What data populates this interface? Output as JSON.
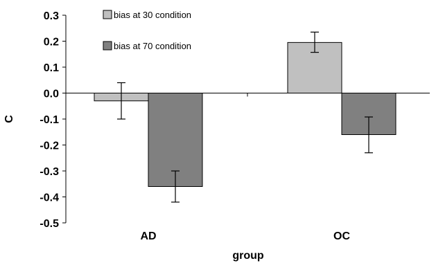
{
  "chart_data": {
    "type": "bar",
    "categories": [
      "AD",
      "OC"
    ],
    "series": [
      {
        "name": "bias at 30 condition",
        "color": "#c0c0c0",
        "values": [
          -0.03,
          0.195
        ],
        "error": [
          [
            -0.1,
            0.04
          ],
          [
            0.157,
            0.235
          ]
        ]
      },
      {
        "name": "bias at 70 condition",
        "color": "#808080",
        "values": [
          -0.36,
          -0.16
        ],
        "error": [
          [
            -0.42,
            -0.3
          ],
          [
            -0.23,
            -0.092
          ]
        ]
      }
    ],
    "xlabel": "group",
    "ylabel": "C",
    "ylim": [
      -0.5,
      0.3
    ],
    "yticks": [
      "0.3",
      "0.2",
      "0.1",
      "0.0",
      "-0.1",
      "-0.2",
      "-0.3",
      "-0.4",
      "-0.5"
    ],
    "legend_position": "top-left",
    "grid": false
  }
}
